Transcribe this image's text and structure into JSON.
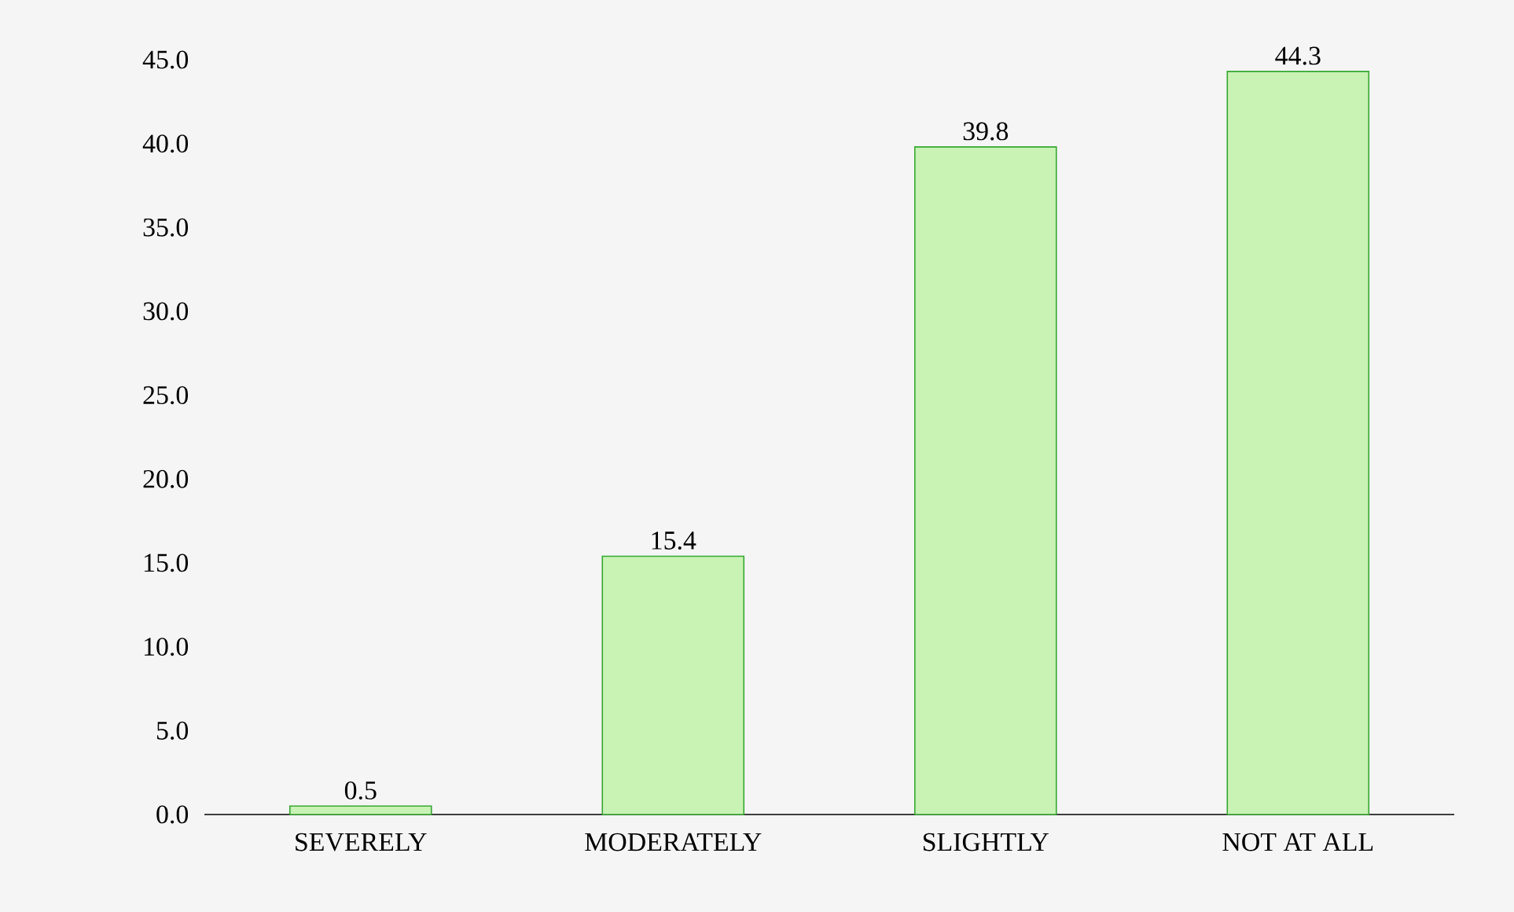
{
  "chart_data": {
    "type": "bar",
    "categories": [
      "SEVERELY",
      "MODERATELY",
      "SLIGHTLY",
      "NOT AT ALL"
    ],
    "values": [
      0.5,
      15.4,
      39.8,
      44.3
    ],
    "color": "#c9f2b5",
    "ylim": [
      0,
      45
    ],
    "yticks": [
      {
        "value": 0,
        "label": "0.0"
      },
      {
        "value": 5,
        "label": "5.0"
      },
      {
        "value": 10,
        "label": "10.0"
      },
      {
        "value": 15,
        "label": "15.0"
      },
      {
        "value": 20,
        "label": "20.0"
      },
      {
        "value": 25,
        "label": "25.0"
      },
      {
        "value": 30,
        "label": "30.0"
      },
      {
        "value": 35,
        "label": "35.0"
      },
      {
        "value": 40,
        "label": "40.0"
      },
      {
        "value": 45,
        "label": "45.0"
      }
    ],
    "data_labels": true,
    "grid": false
  }
}
